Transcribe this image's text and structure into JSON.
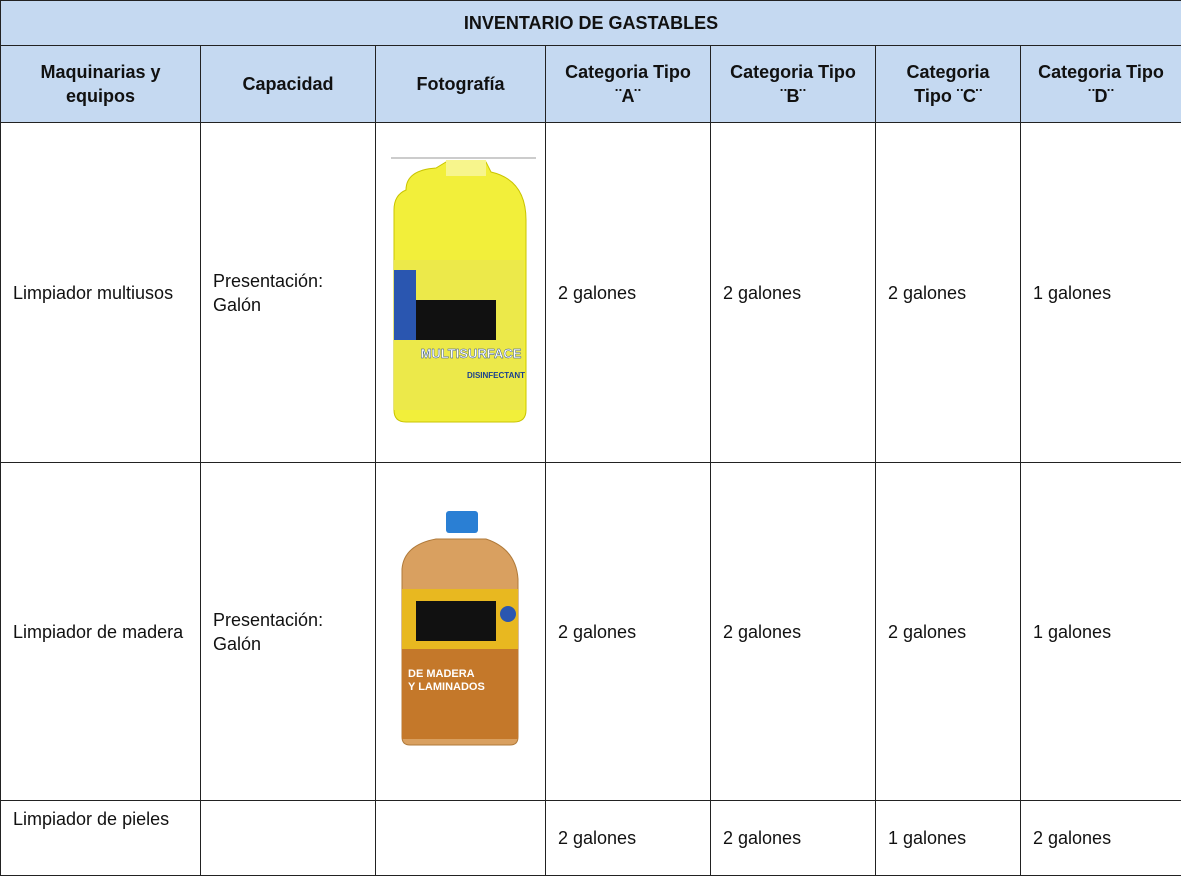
{
  "table": {
    "title": "INVENTARIO DE GASTABLES",
    "header": [
      "Maquinarias y equipos",
      "Capacidad",
      "Fotografía",
      "Categoria Tipo ¨A¨",
      "Categoria Tipo ¨B¨",
      "Categoria Tipo ¨C¨",
      "Categoria Tipo ¨D¨"
    ],
    "rows": [
      {
        "item": "Limpiador multiusos",
        "capacity": "Presentación: Galón",
        "photo_text": [
          "MULTISURFACE",
          "DISINFECTANT"
        ],
        "values": [
          "2 galones",
          "2 galones",
          "2 galones",
          "1 galones"
        ]
      },
      {
        "item": "Limpiador de madera",
        "capacity": "Presentación: Galón",
        "photo_text": [
          "DE MADERA",
          "Y LAMINADOS"
        ],
        "values": [
          "2 galones",
          "2 galones",
          "2 galones",
          "1 galones"
        ]
      },
      {
        "item": "Limpiador de pieles",
        "values": [
          "2 galones",
          "2 galones",
          "1 galones",
          "2 galones"
        ]
      }
    ]
  }
}
